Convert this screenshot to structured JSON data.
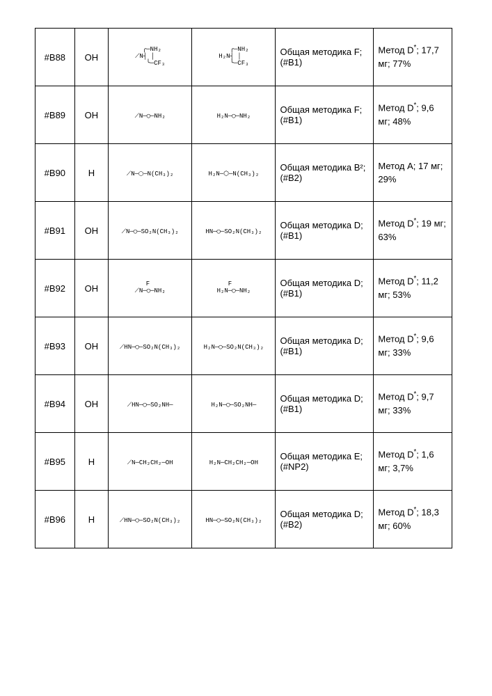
{
  "rows": [
    {
      "id": "#B88",
      "r": "OH",
      "s1": "  ╭─NH₂\n⟋N┤ │\n   ╰─CF₃",
      "s2": "   ╭─NH₂\nH₂N┤ │\n   ╰─CF₃",
      "proc": "Общая методика F; (#B1)",
      "meth_a": "Метод D",
      "meth_sup": "*",
      "meth_b": "; 17,7 мг; 77%"
    },
    {
      "id": "#B89",
      "r": "OH",
      "s1": "⟋N─◯─NH₂",
      "s2": "H₂N─◯─NH₂",
      "proc": "Общая методика F; (#B1)",
      "meth_a": "Метод D",
      "meth_sup": "*",
      "meth_b": "; 9,6 мг; 48%"
    },
    {
      "id": "#B90",
      "r": "H",
      "s1": "⟋N─⬡─N(CH₃)₂",
      "s2": "H₂N─⬡─N(CH₃)₂",
      "proc": "Общая методика B²; (#B2)",
      "meth_a": "Метод A; 17 мг; 29%",
      "meth_sup": "",
      "meth_b": ""
    },
    {
      "id": "#B91",
      "r": "OH",
      "s1": "⟋N─◯─SO₂N(CH₃)₂",
      "s2": "HN─◯─SO₂N(CH₃)₂",
      "proc": "Общая методика D; (#B1)",
      "meth_a": "Метод D",
      "meth_sup": "*",
      "meth_b": "; 19 мг; 63%"
    },
    {
      "id": "#B92",
      "r": "OH",
      "s1": "   F\n⟋N─◯─NH₂",
      "s2": "   F\nH₂N─◯─NH₂",
      "proc": "Общая методика D; (#B1)",
      "meth_a": "Метод D",
      "meth_sup": "*",
      "meth_b": "; 11,2 мг; 53%"
    },
    {
      "id": "#B93",
      "r": "OH",
      "s1": "⟋HN─◯─SO₂N(CH₃)₂",
      "s2": "H₂N─◯─SO₂N(CH₃)₂",
      "proc": "Общая методика D; (#B1)",
      "meth_a": "Метод D",
      "meth_sup": "*",
      "meth_b": "; 9,6 мг; 33%"
    },
    {
      "id": "#B94",
      "r": "OH",
      "s1": "⟋HN─◯─SO₂NH─",
      "s2": "H₂N─◯─SO₂NH─",
      "proc": "Общая методика D; (#B1)",
      "meth_a": "Метод D",
      "meth_sup": "*",
      "meth_b": "; 9,7 мг; 33%"
    },
    {
      "id": "#B95",
      "r": "H",
      "s1": "⟋N─CH₂CH₂─OH",
      "s2": "H₂N─CH₂CH₂─OH",
      "proc": "Общая методика E; (#NP2)",
      "meth_a": "Метод D",
      "meth_sup": "*",
      "meth_b": "; 1,6 мг; 3,7%"
    },
    {
      "id": "#B96",
      "r": "H",
      "s1": "⟋HN─◯─SO₂N(CH₃)₂",
      "s2": "HN─◯─SO₂N(CH₃)₂",
      "proc": "Общая методика D; (#B2)",
      "meth_a": "Метод D",
      "meth_sup": "*",
      "meth_b": "; 18,3 мг; 60%"
    }
  ]
}
